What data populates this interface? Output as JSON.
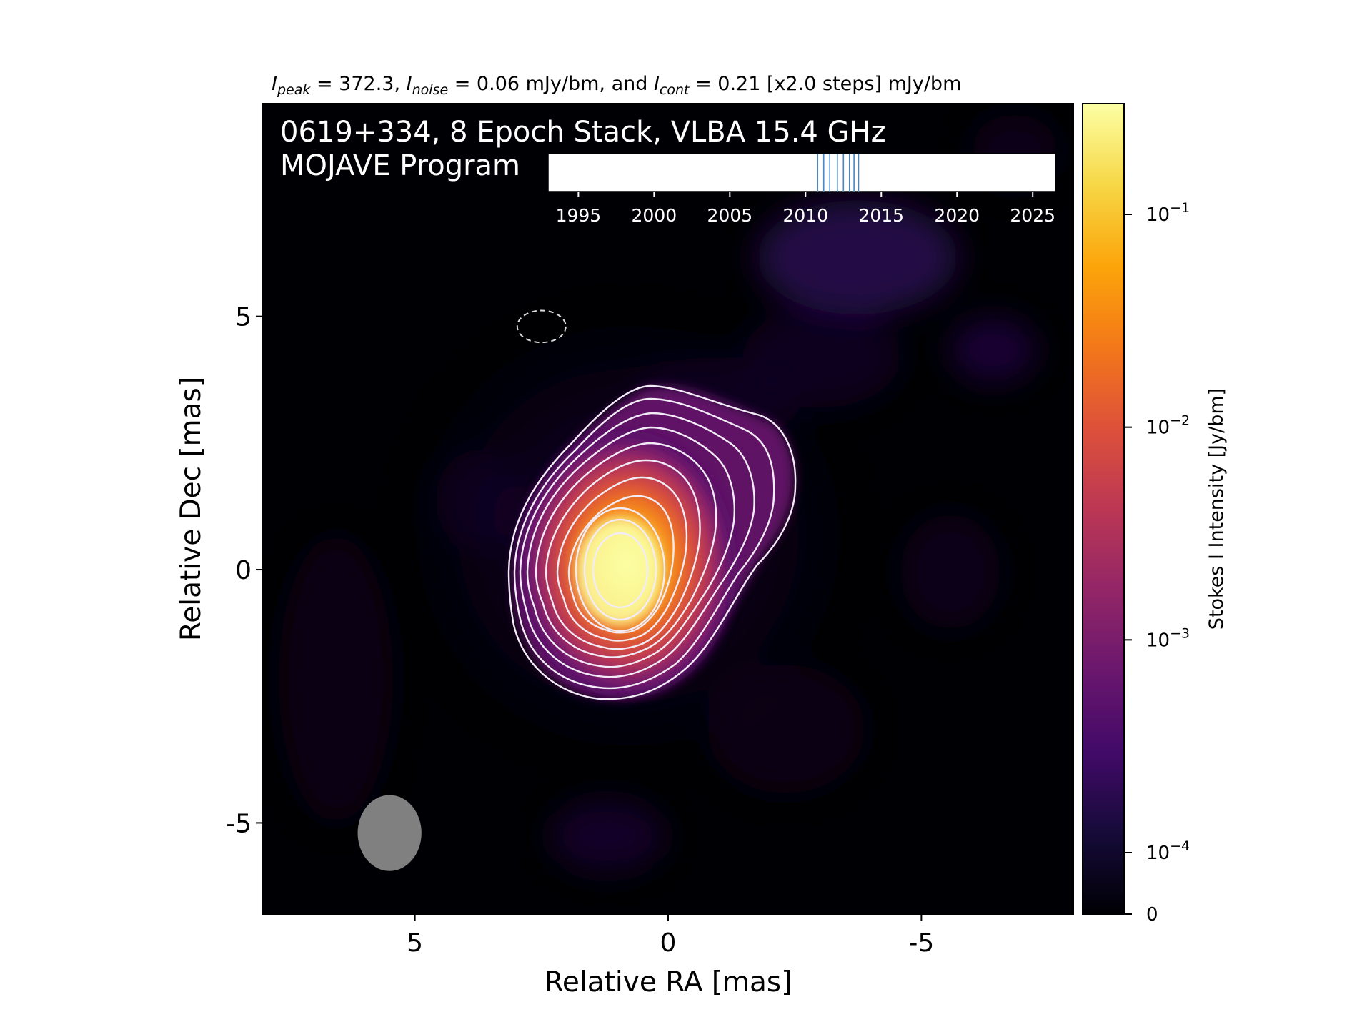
{
  "chart_data": {
    "type": "heatmap",
    "title": {
      "p1": "I",
      "p1_sub": "peak",
      "p1_val": " = 372.3, ",
      "p2": "I",
      "p2_sub": "noise",
      "p2_val": " = 0.06 mJy/bm, and ",
      "p3": "I",
      "p3_sub": "cont",
      "p3_val": " = 0.21 [x2.0 steps] mJy/bm"
    },
    "annotation_line1": "0619+334, 8 Epoch Stack, VLBA 15.4 GHz",
    "annotation_line2": "MOJAVE Program",
    "xlabel": "Relative RA [mas]",
    "ylabel": "Relative Dec [mas]",
    "xlim": [
      8,
      -8
    ],
    "ylim": [
      -6.8,
      9.2
    ],
    "x_ticks": [
      {
        "value": 5,
        "label": "5"
      },
      {
        "value": 0,
        "label": "0"
      },
      {
        "value": -5,
        "label": "-5"
      }
    ],
    "y_ticks": [
      {
        "value": 5,
        "label": "5"
      },
      {
        "value": 0,
        "label": "0"
      },
      {
        "value": -5,
        "label": "-5"
      }
    ],
    "colorbar": {
      "label": "Stokes I Intensity [Jy/bm]",
      "scale": "log",
      "colormap": "inferno",
      "ticks": [
        {
          "value": 0,
          "base": "0",
          "exp": ""
        },
        {
          "value": 0.0001,
          "base": "10",
          "exp": "−4"
        },
        {
          "value": 0.001,
          "base": "10",
          "exp": "−3"
        },
        {
          "value": 0.01,
          "base": "10",
          "exp": "−2"
        },
        {
          "value": 0.1,
          "base": "10",
          "exp": "−1"
        }
      ]
    },
    "epoch_timeline": {
      "range": [
        1993,
        2026.5
      ],
      "tick_values": [
        1995,
        2000,
        2005,
        2010,
        2015,
        2020,
        2025
      ],
      "tick_labels": [
        "1995",
        "2000",
        "2005",
        "2010",
        "2015",
        "2020",
        "2025"
      ],
      "epochs": [
        2010.8,
        2011.2,
        2011.6,
        2012.1,
        2012.5,
        2012.9,
        2013.2,
        2013.5
      ],
      "epoch_color": "#4a86c8"
    },
    "contour_levels_mJy_per_beam": [
      0.21,
      0.42,
      0.84,
      1.68,
      3.36,
      6.72,
      13.44,
      26.88,
      53.76,
      107.52,
      215.04
    ],
    "contour_color": "#f2ecf7",
    "beam": {
      "x": 5.5,
      "y": -5.2,
      "major": 1.5,
      "minor": 1.26,
      "color": "#808080"
    },
    "dashed_regions": [
      {
        "x": 2.5,
        "y": 4.8,
        "major": 0.45,
        "minor": 0.6
      },
      {
        "x": -8.5,
        "y": -3.5,
        "major": 0.85,
        "minor": 0.6
      }
    ]
  }
}
